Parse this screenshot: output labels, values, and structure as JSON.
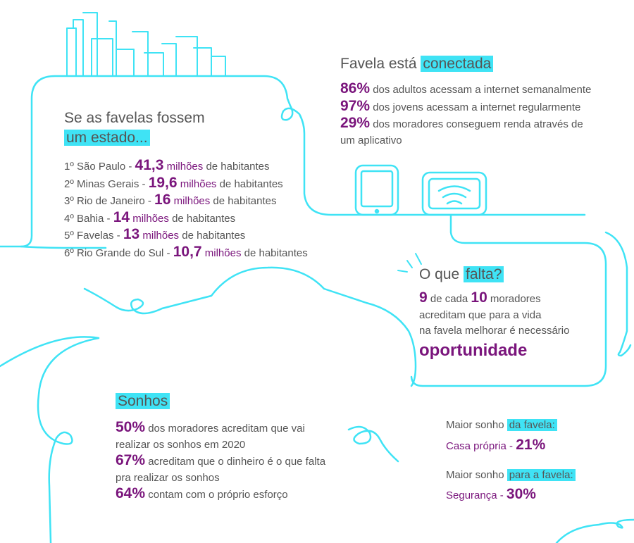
{
  "colors": {
    "accent": "#3fe3f5",
    "purple": "#7a157c",
    "text": "#555555"
  },
  "icons": [
    "city-skyline-icon",
    "tablet-icon",
    "wifi-router-icon"
  ],
  "estado": {
    "heading_line1": "Se as favelas fossem",
    "heading_line2": "um estado...",
    "items": [
      {
        "rank": "1º São Paulo - ",
        "value": "41,3",
        "unit": " milhões",
        "suffix": " de habitantes"
      },
      {
        "rank": "2º Minas Gerais - ",
        "value": "19,6",
        "unit": " milhões",
        "suffix": " de habitantes"
      },
      {
        "rank": "3º Rio de Janeiro - ",
        "value": "16",
        "unit": " milhões",
        "suffix": " de habitantes"
      },
      {
        "rank": "4º Bahia - ",
        "value": "14",
        "unit": " milhões",
        "suffix": " de habitantes"
      },
      {
        "rank": "5º Favelas - ",
        "value": "13",
        "unit": " milhões",
        "suffix": " de habitantes"
      },
      {
        "rank": "6º Rio Grande do Sul - ",
        "value": "10,7",
        "unit": " milhões",
        "suffix": " de habitantes"
      }
    ]
  },
  "conectada": {
    "heading_plain": "Favela está ",
    "heading_hl": "conectada",
    "stats": [
      {
        "pct": "86%",
        "text": " dos adultos acessam a internet semanalmente"
      },
      {
        "pct": "97%",
        "text": " dos jovens acessam a internet regularmente"
      },
      {
        "pct": "29%",
        "text": " dos moradores conseguem renda através de"
      }
    ],
    "stat3_continuation": "um aplicativo"
  },
  "falta": {
    "heading_plain": "O que ",
    "heading_hl": "falta?",
    "num1": "9",
    "text1": " de cada ",
    "num2": "10",
    "text2": " moradores",
    "line2": "acreditam que para a vida",
    "line3": "na favela melhorar é necessário",
    "highlight_word": "oportunidade"
  },
  "sonhos": {
    "heading": "Sonhos",
    "s1_pct": "50%",
    "s1_text": " dos moradores acreditam que vai",
    "s1_cont": "realizar os sonhos em 2020",
    "s2_pct": "67%",
    "s2_text": " acreditam que o dinheiro é o que falta",
    "s2_cont": "pra realizar os sonhos",
    "s3_pct": "64%",
    "s3_text": " contam com o próprio esforço"
  },
  "maior": {
    "a_plain": "Maior sonho ",
    "a_hl": "da favela:",
    "a_label": "Casa própria - ",
    "a_value": "21%",
    "b_plain": "Maior sonho ",
    "b_hl": "para a favela:",
    "b_label": "Segurança - ",
    "b_value": "30%"
  }
}
